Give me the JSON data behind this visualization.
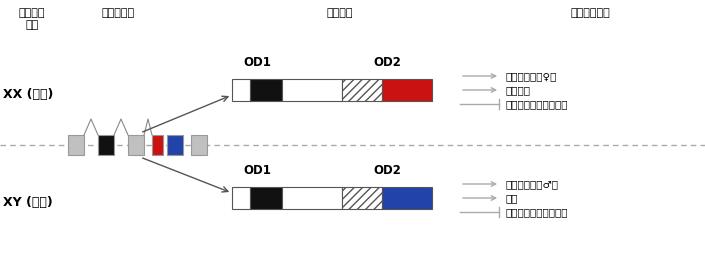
{
  "title_row": [
    "性染色体\n構成",
    "遺伝子構造",
    "転写産物",
    "性特異的形質"
  ],
  "xx_label": "XX (メス)",
  "xy_label": "XY (オス)",
  "od_labels": [
    "OD1",
    "OD2"
  ],
  "xx_traits": [
    "外部生殖器（♀）",
    "卵黄形成",
    "体色（メラニン沈着）"
  ],
  "xy_traits": [
    "外部生殖器（♂）",
    "性櫛",
    "体色（メラニン沈着）"
  ],
  "bg_color": "#ffffff",
  "arrow_gray": "#999999",
  "dark_gray": "#555555",
  "red": "#cc1111",
  "blue": "#2244aa",
  "box_gray": "#c0c0c0",
  "box_gray_dark": "#999999",
  "dashed_color": "#aaaaaa",
  "trait_arrow_color": "#aaaaaa"
}
